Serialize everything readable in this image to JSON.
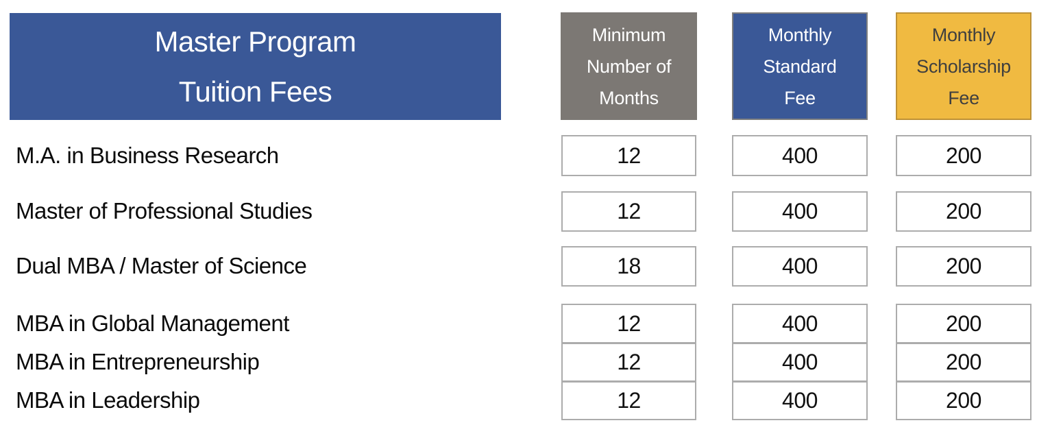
{
  "title": {
    "line1": "Master Program",
    "line2": "Tuition Fees"
  },
  "columns": [
    {
      "id": "min_months",
      "lines": [
        "Minimum",
        "Number of",
        "Months"
      ],
      "bg": "#7C7874",
      "text_color": "#FFFFFF",
      "border_color": "#7C7874"
    },
    {
      "id": "standard_fee",
      "lines": [
        "Monthly",
        "Standard",
        "Fee"
      ],
      "bg": "#3A5897",
      "text_color": "#FFFFFF",
      "border_color": "#7F7F7F"
    },
    {
      "id": "scholarship_fee",
      "lines": [
        "Monthly",
        "Scholarship",
        "Fee"
      ],
      "bg": "#F0BA41",
      "text_color": "#3F3F3F",
      "border_color": "#BD9136"
    }
  ],
  "rows": [
    {
      "program": "M.A. in Business Research",
      "min_months": "12",
      "standard_fee": "400",
      "scholarship_fee": "200"
    },
    {
      "program": "Master of Professional Studies",
      "min_months": "12",
      "standard_fee": "400",
      "scholarship_fee": "200"
    },
    {
      "program": "Dual MBA / Master of Science",
      "min_months": "18",
      "standard_fee": "400",
      "scholarship_fee": "200"
    },
    {
      "program": "MBA in Global Management",
      "min_months": "12",
      "standard_fee": "400",
      "scholarship_fee": "200"
    },
    {
      "program": "MBA in Entrepreneurship",
      "min_months": "12",
      "standard_fee": "400",
      "scholarship_fee": "200"
    },
    {
      "program": "MBA in Leadership",
      "min_months": "12",
      "standard_fee": "400",
      "scholarship_fee": "200"
    }
  ],
  "colors": {
    "brand_blue": "#3A5897",
    "header_gray": "#7C7874",
    "header_gold": "#F0BA41",
    "gold_border": "#BD9136",
    "cell_border": "#ACACAC",
    "title_text": "#FFFFFF",
    "body_text": "#0B0B0B"
  },
  "chart_data": {
    "type": "table",
    "title": "Master Program Tuition Fees",
    "column_headers": [
      "Minimum Number of Months",
      "Monthly Standard Fee",
      "Monthly Scholarship Fee"
    ],
    "row_headers": [
      "M.A. in Business Research",
      "Master of Professional Studies",
      "Dual MBA / Master of Science",
      "MBA in Global Management",
      "MBA in Entrepreneurship",
      "MBA in Leadership"
    ],
    "values": [
      [
        12,
        400,
        200
      ],
      [
        12,
        400,
        200
      ],
      [
        18,
        400,
        200
      ],
      [
        12,
        400,
        200
      ],
      [
        12,
        400,
        200
      ],
      [
        12,
        400,
        200
      ]
    ]
  }
}
